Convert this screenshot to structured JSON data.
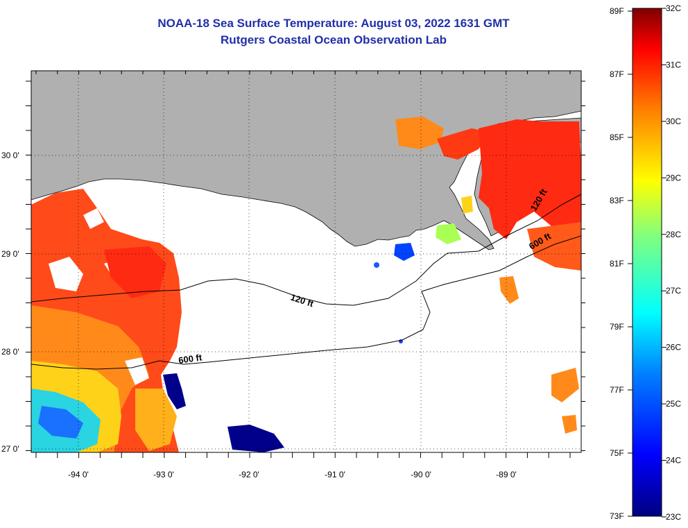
{
  "header": {
    "title": "NOAA-18 Sea Surface Temperature:  August 03, 2022 1631 GMT",
    "subtitle": "Rutgers Coastal Ocean Observation Lab"
  },
  "map": {
    "x_ticks": [
      "-94 0'",
      "-93 0'",
      "-92 0'",
      "-91 0'",
      "-90 0'",
      "-89 0'"
    ],
    "y_ticks": [
      "30 0'",
      "29 0'",
      "28 0'",
      "27 0'"
    ],
    "contours": [
      "120 ft",
      "600 ft"
    ],
    "colors": {
      "land": "#b0b0b0",
      "nodata": "#ffffff",
      "contour": "#000000"
    }
  },
  "colorbar": {
    "f_labels": [
      "89F",
      "87F",
      "85F",
      "83F",
      "81F",
      "79F",
      "77F",
      "75F",
      "73F"
    ],
    "c_labels": [
      "32C",
      "31C",
      "30C",
      "29C",
      "28C",
      "27C",
      "26C",
      "25C",
      "24C",
      "23C"
    ],
    "colors": [
      "#00007f",
      "#0000ff",
      "#007fff",
      "#00ffff",
      "#7fff7f",
      "#ffff00",
      "#ff7f00",
      "#ff0000",
      "#7f0000"
    ]
  }
}
